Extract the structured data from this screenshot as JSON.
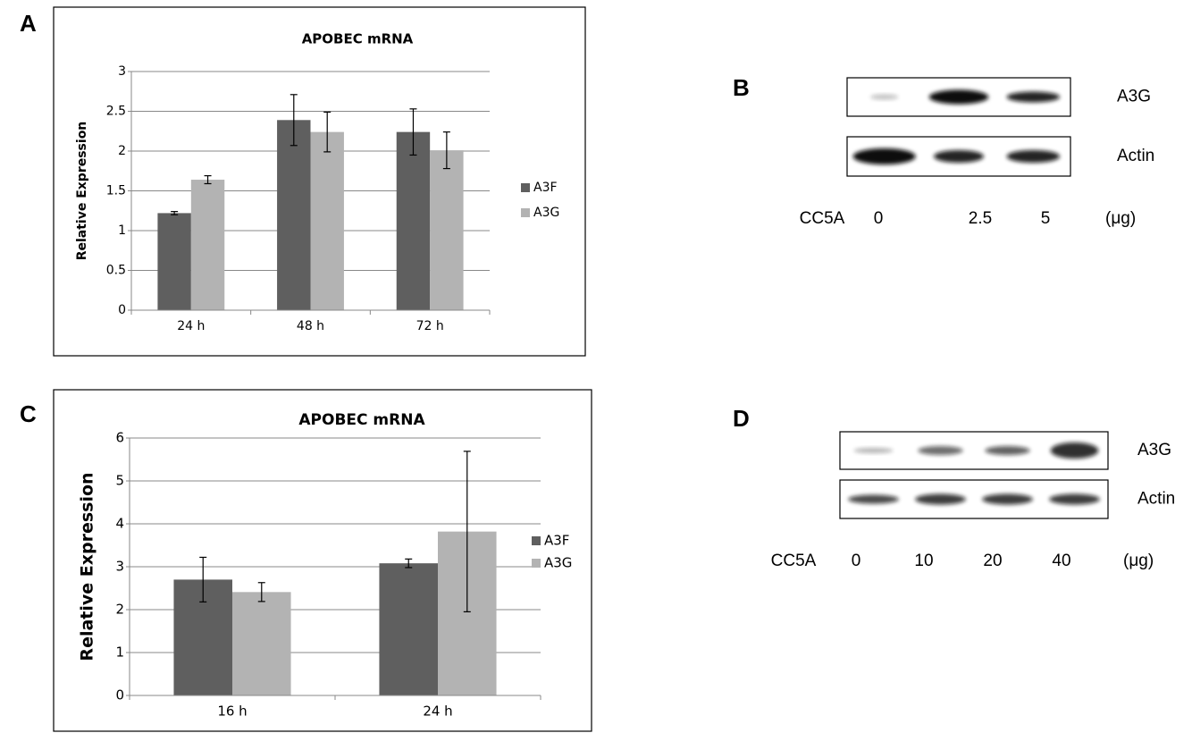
{
  "panel_labels": [
    "A",
    "B",
    "C",
    "D"
  ],
  "chart_data": [
    {
      "type": "bar",
      "title": "APOBEC mRNA",
      "y_label": "Relative Expression",
      "categories": [
        "24 h",
        "48 h",
        "72 h"
      ],
      "series": [
        {
          "name": "A3F",
          "color": "#5f5f5f",
          "values": [
            1.22,
            2.39,
            2.24
          ],
          "errors": [
            0.02,
            0.32,
            0.29
          ]
        },
        {
          "name": "A3G",
          "color": "#b3b3b3",
          "values": [
            1.64,
            2.24,
            2.01
          ],
          "errors": [
            0.05,
            0.25,
            0.23
          ]
        }
      ],
      "ylim": [
        0,
        3
      ],
      "yticks": [
        0,
        0.5,
        1,
        1.5,
        2,
        2.5,
        3
      ],
      "grid": true,
      "legend": "right"
    },
    {
      "type": "bar",
      "title": "APOBEC mRNA",
      "y_label": "Relative Expression",
      "categories": [
        "16 h",
        "24 h"
      ],
      "series": [
        {
          "name": "A3F",
          "color": "#5f5f5f",
          "values": [
            2.7,
            3.08
          ],
          "errors": [
            0.52,
            0.1
          ]
        },
        {
          "name": "A3G",
          "color": "#b3b3b3",
          "values": [
            2.41,
            3.82
          ],
          "errors": [
            0.22,
            1.87
          ]
        }
      ],
      "ylim": [
        0,
        6
      ],
      "yticks": [
        0,
        1,
        2,
        3,
        4,
        5,
        6
      ],
      "grid": true,
      "legend": "right"
    }
  ],
  "blots": [
    {
      "bands": [
        "A3G",
        "Actin"
      ],
      "treatment": "CC5A",
      "doses": [
        0,
        2.5,
        5
      ],
      "unit": "(μg)"
    },
    {
      "bands": [
        "A3G",
        "Actin"
      ],
      "treatment": "CC5A",
      "doses": [
        0,
        10,
        20,
        40
      ],
      "unit": "(μg)"
    }
  ]
}
